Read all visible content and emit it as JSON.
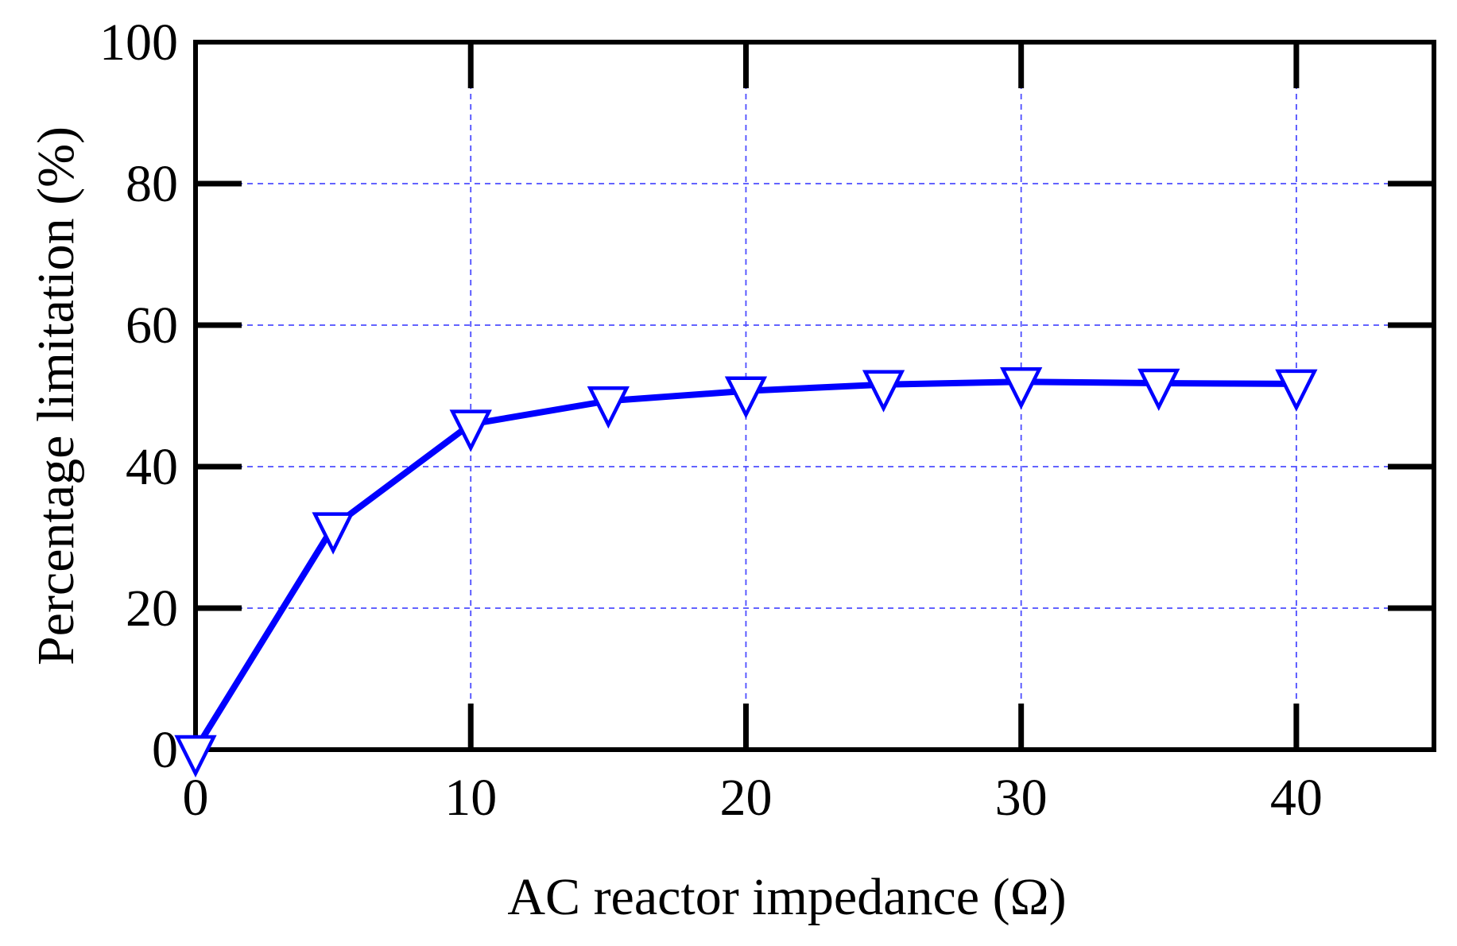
{
  "chart_data": {
    "type": "line",
    "xlabel": "AC reactor impedance (Ω)",
    "ylabel": "Percentage limitation (%)",
    "xlim": [
      0,
      45
    ],
    "ylim": [
      0,
      100
    ],
    "x_ticks": [
      0,
      10,
      20,
      30,
      40
    ],
    "y_ticks": [
      0,
      20,
      40,
      60,
      80,
      100
    ],
    "x_tick_labels": [
      "0",
      "10",
      "20",
      "30",
      "40"
    ],
    "y_tick_labels": [
      "0",
      "20",
      "40",
      "60",
      "80",
      "100"
    ],
    "grid": true,
    "grid_style": "dashed",
    "legend": false,
    "series": [
      {
        "marker": "triangle-down-open",
        "color": "#0000ff",
        "points": [
          {
            "x": 0,
            "y": 0
          },
          {
            "x": 5,
            "y": 31.5
          },
          {
            "x": 10,
            "y": 46.0
          },
          {
            "x": 15,
            "y": 49.3
          },
          {
            "x": 20,
            "y": 50.7
          },
          {
            "x": 25,
            "y": 51.6
          },
          {
            "x": 30,
            "y": 52.0
          },
          {
            "x": 35,
            "y": 51.8
          },
          {
            "x": 40,
            "y": 51.7
          }
        ]
      }
    ]
  },
  "colors": {
    "series": "#0000ff",
    "grid": "#4d4dff",
    "axis": "#000000",
    "background": "#ffffff"
  }
}
